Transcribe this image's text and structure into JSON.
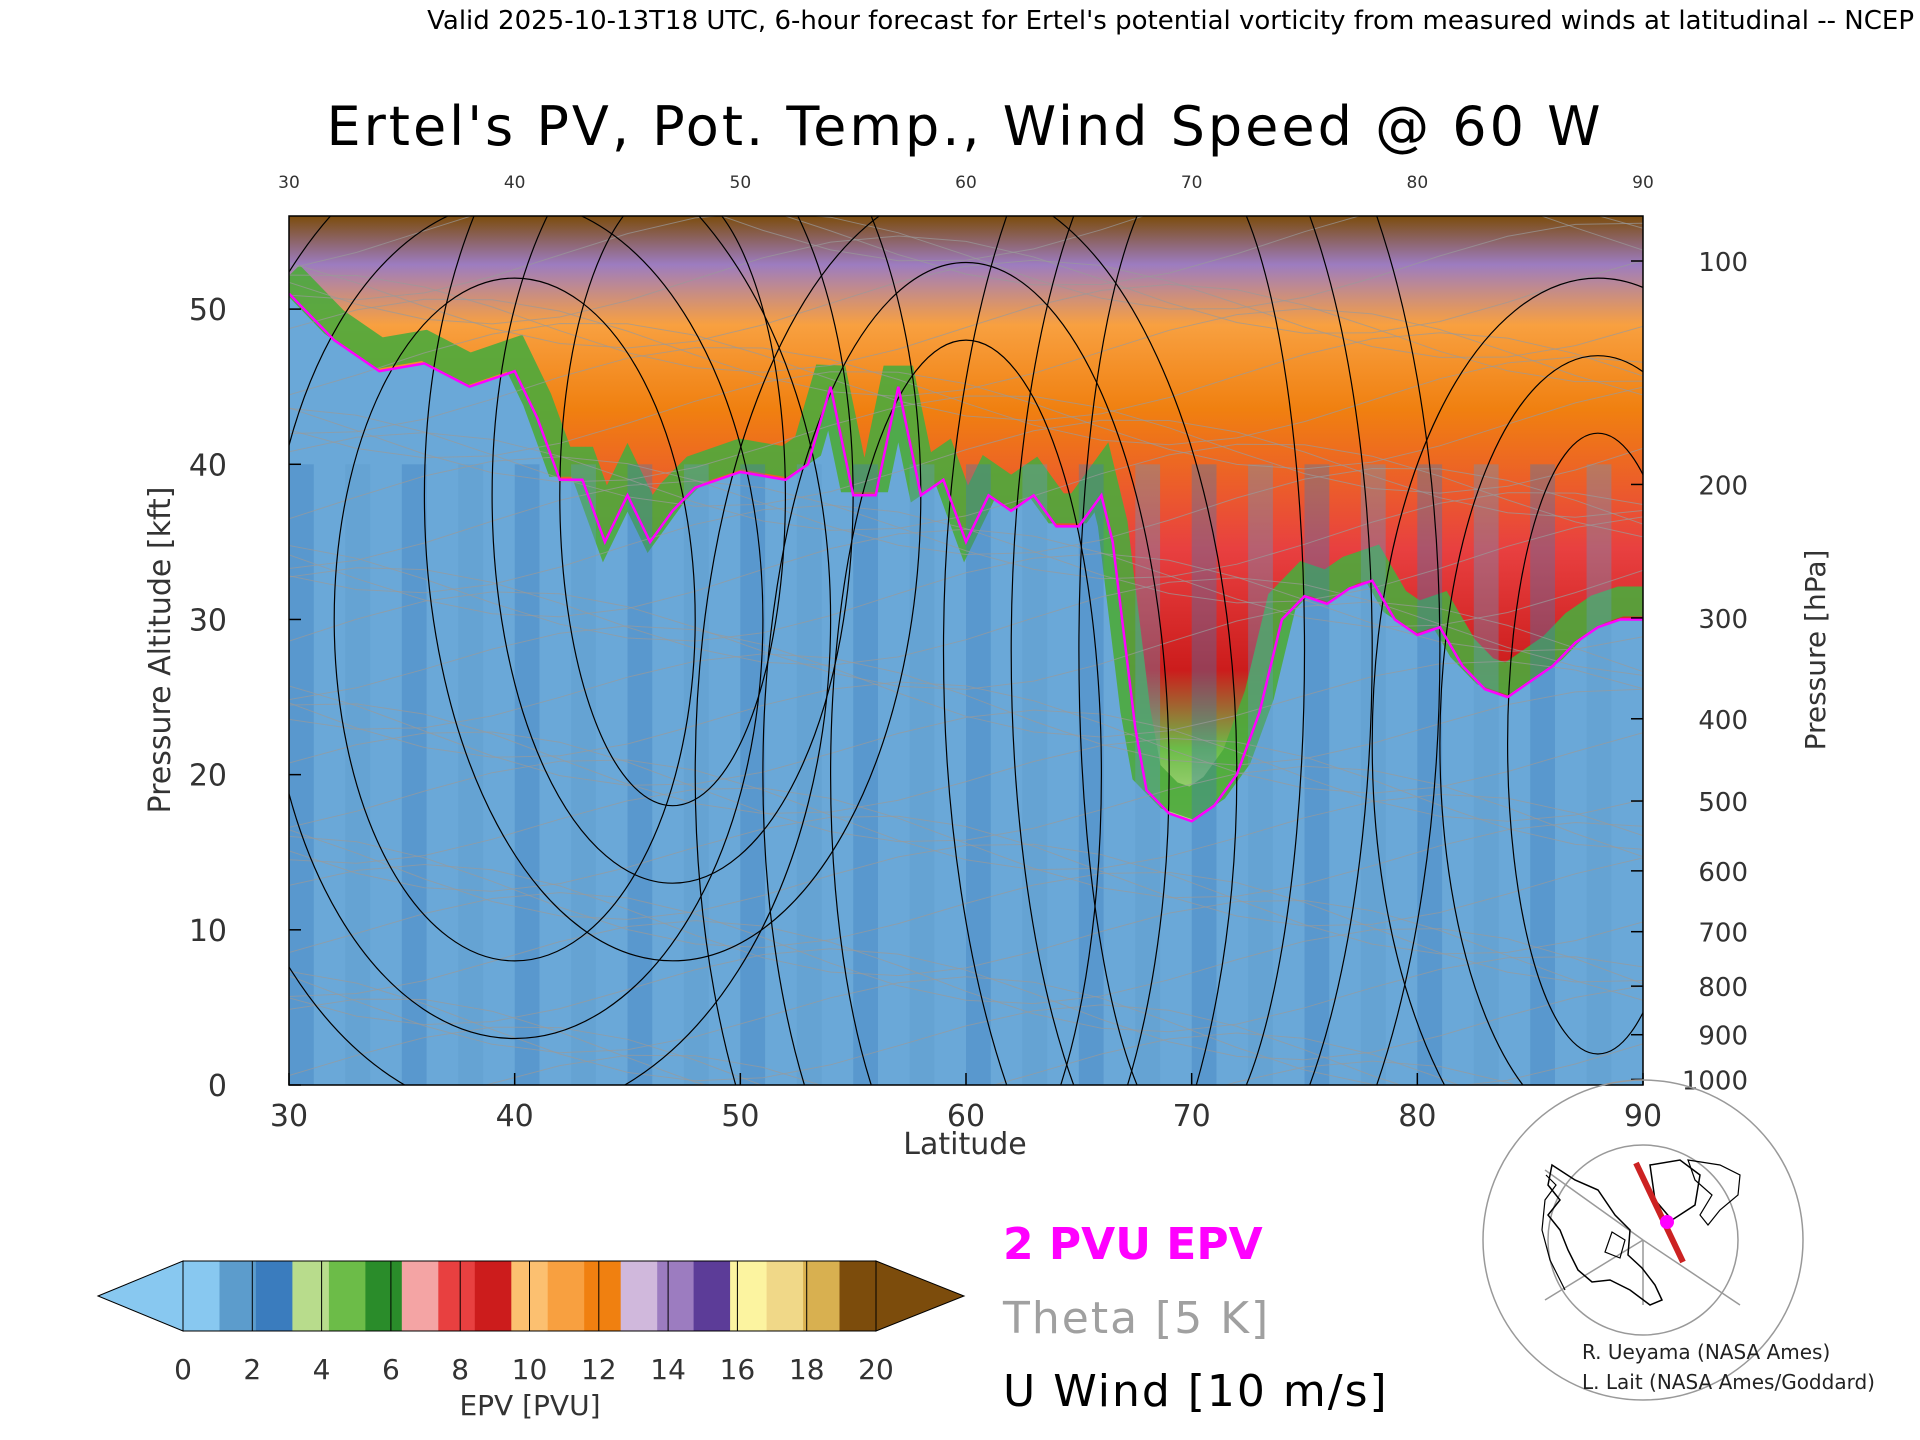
{
  "header": {
    "valid_line": "Valid 2025-10-13T18 UTC, 6-hour forecast for Ertel's potential vorticity from measured winds at latitudinal -- NCEP"
  },
  "chart_data": {
    "type": "heatmap",
    "title": "Ertel's PV, Pot. Temp., Wind Speed @ 60 W",
    "xlabel": "Latitude",
    "ylabel_left": "Pressure Altitude [kft]",
    "ylabel_right": "Pressure [hPa]",
    "xlim": [
      30,
      90
    ],
    "ylim": [
      0,
      56
    ],
    "x_ticks": [
      "30",
      "40",
      "50",
      "60",
      "70",
      "80",
      "90"
    ],
    "x_ticks_top": [
      "30",
      "40",
      "50",
      "60",
      "70",
      "80",
      "90"
    ],
    "y_ticks_left": [
      "0",
      "10",
      "20",
      "30",
      "40",
      "50"
    ],
    "y_ticks_right": [
      {
        "label": "1000",
        "kft": 0.36
      },
      {
        "label": "900",
        "kft": 3.24
      },
      {
        "label": "800",
        "kft": 6.37
      },
      {
        "label": "700",
        "kft": 9.88
      },
      {
        "label": "600",
        "kft": 13.8
      },
      {
        "label": "500",
        "kft": 18.3
      },
      {
        "label": "400",
        "kft": 23.6
      },
      {
        "label": "300",
        "kft": 30.1
      },
      {
        "label": "200",
        "kft": 38.7
      },
      {
        "label": "100",
        "kft": 53.1
      }
    ],
    "tropopause_2pvu_kft": [
      [
        30,
        51
      ],
      [
        32,
        48
      ],
      [
        34,
        46
      ],
      [
        36,
        46.5
      ],
      [
        38,
        45
      ],
      [
        40,
        46
      ],
      [
        41,
        43
      ],
      [
        42,
        39
      ],
      [
        43,
        39
      ],
      [
        44,
        35
      ],
      [
        45,
        38
      ],
      [
        46,
        35
      ],
      [
        47,
        37
      ],
      [
        48,
        38.5
      ],
      [
        50,
        39.5
      ],
      [
        52,
        39
      ],
      [
        53,
        40
      ],
      [
        54,
        45
      ],
      [
        55,
        38
      ],
      [
        56,
        38
      ],
      [
        57,
        45
      ],
      [
        58,
        38
      ],
      [
        59,
        39
      ],
      [
        60,
        35
      ],
      [
        61,
        38
      ],
      [
        62,
        37
      ],
      [
        63,
        38
      ],
      [
        64,
        36
      ],
      [
        65,
        36
      ],
      [
        66,
        38
      ],
      [
        66.5,
        35
      ],
      [
        67,
        29
      ],
      [
        67.5,
        23
      ],
      [
        68,
        19
      ],
      [
        69,
        17.5
      ],
      [
        70,
        17
      ],
      [
        71,
        18
      ],
      [
        72,
        20
      ],
      [
        73,
        24
      ],
      [
        74,
        30
      ],
      [
        75,
        31.5
      ],
      [
        76,
        31
      ],
      [
        77,
        32
      ],
      [
        78,
        32.5
      ],
      [
        79,
        30
      ],
      [
        80,
        29
      ],
      [
        81,
        29.5
      ],
      [
        82,
        27
      ],
      [
        83,
        25.5
      ],
      [
        84,
        25
      ],
      [
        85,
        26
      ],
      [
        86,
        27
      ],
      [
        87,
        28.5
      ],
      [
        88,
        29.5
      ],
      [
        89,
        30
      ],
      [
        90,
        30
      ]
    ],
    "theta_line_step_K": 5,
    "u_wind_step_ms": 10,
    "colorbar": {
      "label": "EPV [PVU]",
      "ticks": [
        "0",
        "2",
        "4",
        "6",
        "8",
        "10",
        "12",
        "14",
        "16",
        "18",
        "20"
      ],
      "colors": [
        "#88c8f0",
        "#5c9ccc",
        "#3a7cbe",
        "#b8dc8c",
        "#6cbc48",
        "#2a8c2a",
        "#f4a4a4",
        "#e84040",
        "#cc1c1c",
        "#fcc070",
        "#f8a040",
        "#f08010",
        "#d0b8dc",
        "#9c7cc0",
        "#5c3c98",
        "#fcf4a0",
        "#f0d888",
        "#d8b050",
        "#7c4c0c"
      ]
    }
  },
  "legend": {
    "epv": "2 PVU EPV",
    "theta": "Theta [5 K]",
    "uwind": "U Wind [10 m/s]",
    "colors": {
      "epv": "#ff00ff",
      "theta": "#a0a0a0",
      "uwind": "#000000"
    }
  },
  "credits": {
    "line1": "R. Ueyama (NASA Ames)",
    "line2": "L. Lait (NASA Ames/Goddard)"
  },
  "map": {
    "track_color": "#cc2222",
    "marker_color": "#ff00ff"
  }
}
